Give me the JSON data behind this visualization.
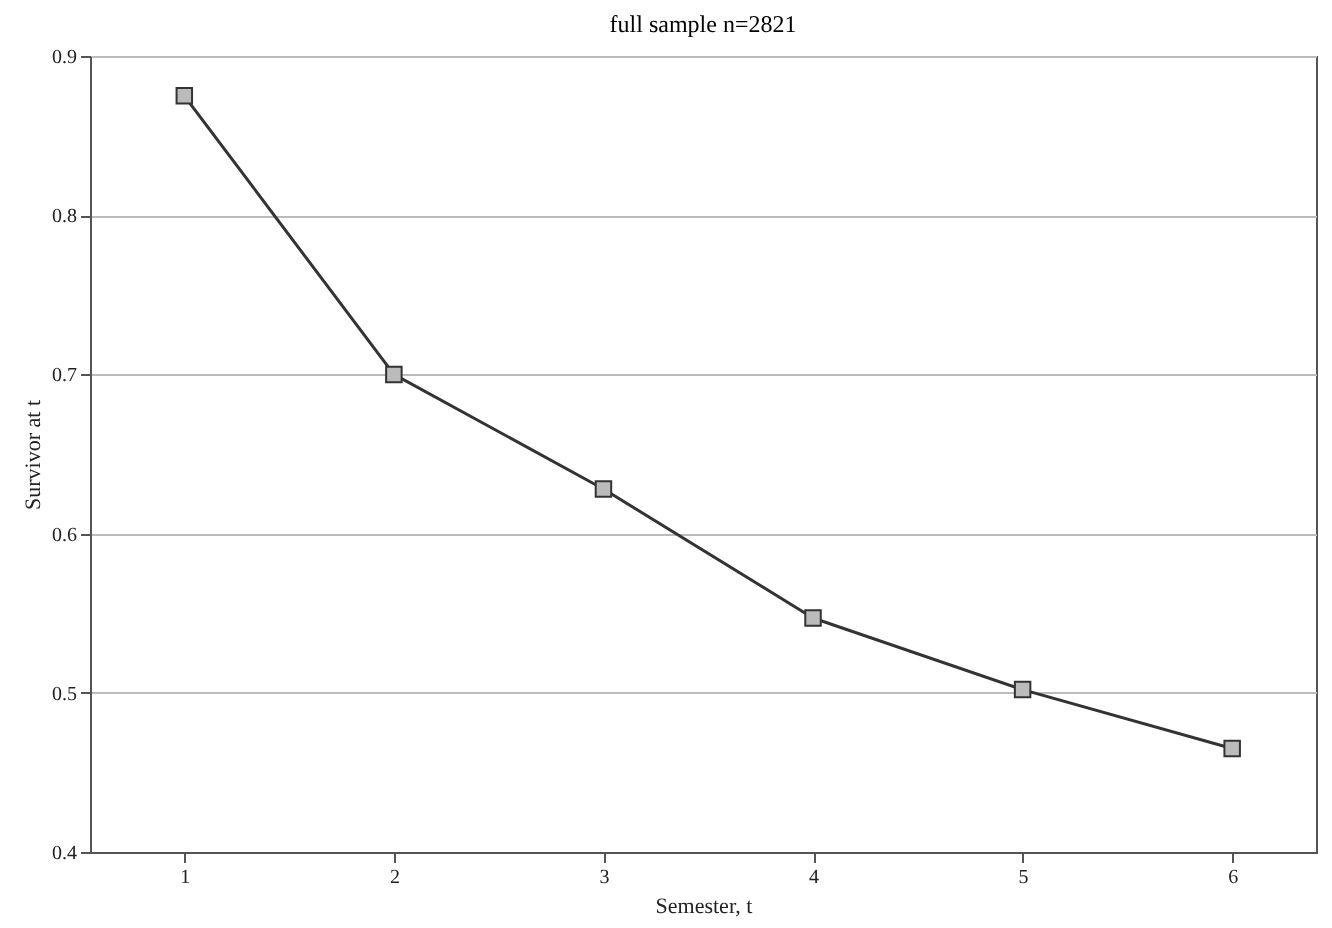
{
  "chart_data": {
    "type": "line",
    "title": "full sample n=2821",
    "xlabel": "Semester, t",
    "ylabel": "Survivor at t",
    "x": [
      1,
      2,
      3,
      4,
      5,
      6
    ],
    "series": [
      {
        "color": "#333333",
        "values": [
          0.875,
          0.7,
          0.628,
          0.547,
          0.502,
          0.465
        ]
      }
    ],
    "xlim": [
      0.55,
      6.4
    ],
    "xticks": [
      1,
      2,
      3,
      4,
      5,
      6
    ],
    "ylim": [
      0.4,
      0.9
    ],
    "yticks": [
      0.4,
      0.5,
      0.6,
      0.7,
      0.8,
      0.9
    ],
    "grid": "y",
    "marker": "square",
    "line_style": "solid"
  }
}
